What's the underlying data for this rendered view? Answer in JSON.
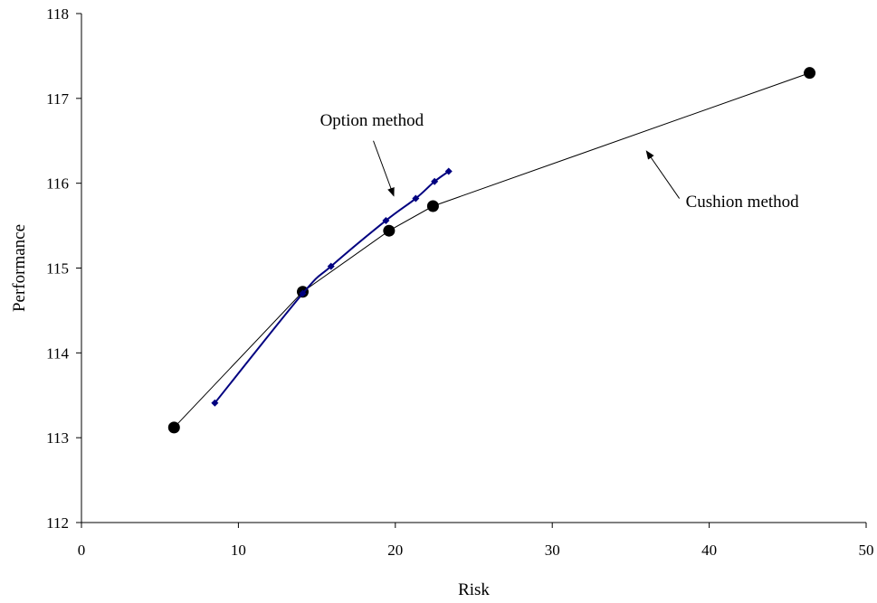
{
  "chart_data": {
    "type": "line",
    "xlabel": "Risk",
    "ylabel": "Performance",
    "xlim": [
      0,
      50
    ],
    "ylim": [
      112,
      118
    ],
    "x_ticks": [
      0,
      10,
      20,
      30,
      40,
      50
    ],
    "y_ticks": [
      112,
      113,
      114,
      115,
      116,
      117,
      118
    ],
    "grid": false,
    "legend": "none",
    "series": [
      {
        "color": "#000000",
        "marker": "circle",
        "smooth": false,
        "points": [
          {
            "x": 5.9,
            "y": 113.12
          },
          {
            "x": 14.1,
            "y": 114.72
          },
          {
            "x": 19.6,
            "y": 115.44
          },
          {
            "x": 22.4,
            "y": 115.73
          },
          {
            "x": 46.4,
            "y": 117.3
          }
        ]
      },
      {
        "color": "#000080",
        "marker": "diamond",
        "smooth": true,
        "points": [
          {
            "x": 8.5,
            "y": 113.41
          },
          {
            "x": 14.1,
            "y": 114.7
          },
          {
            "x": 15.9,
            "y": 115.02
          },
          {
            "x": 19.4,
            "y": 115.56
          },
          {
            "x": 21.3,
            "y": 115.82
          },
          {
            "x": 22.5,
            "y": 116.02
          },
          {
            "x": 23.4,
            "y": 116.14
          }
        ]
      }
    ],
    "annotations": [
      {
        "text": "Option method",
        "text_at": [
          15.2,
          116.68
        ],
        "arrow_from": [
          18.6,
          116.5
        ],
        "arrow_to": [
          19.9,
          115.85
        ]
      },
      {
        "text": "Cushion method",
        "text_at": [
          38.5,
          115.72
        ],
        "arrow_from": [
          38.1,
          115.82
        ],
        "arrow_to": [
          36.0,
          116.38
        ]
      }
    ]
  }
}
